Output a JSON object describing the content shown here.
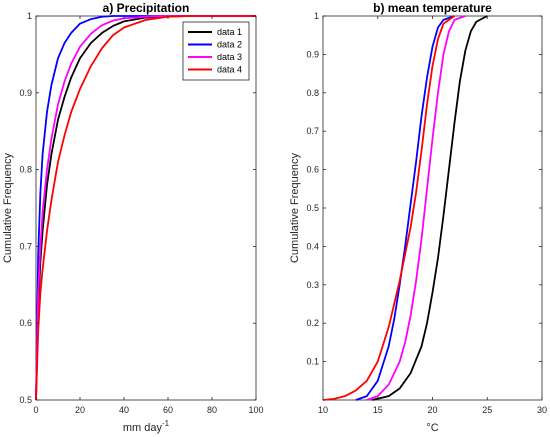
{
  "chart_data": [
    {
      "type": "line",
      "title": "a) Precipitation",
      "xlabel": "mm day",
      "xlabel_superscript": "-1",
      "ylabel": "Cumulative Frequency",
      "xlim": [
        0,
        100
      ],
      "ylim": [
        0.5,
        1
      ],
      "xticks": [
        0,
        20,
        40,
        60,
        80,
        100
      ],
      "yticks": [
        0.5,
        0.6,
        0.7,
        0.8,
        0.9,
        1
      ],
      "ytick_labels": [
        "0.5",
        "0.6",
        "0.7",
        "0.8",
        "0.9",
        "1"
      ],
      "legend": "top-right",
      "series": [
        {
          "name": "data 1",
          "color": "#000000",
          "x": [
            0,
            1,
            2,
            3,
            5,
            7,
            10,
            13,
            16,
            20,
            25,
            30,
            35,
            40,
            50,
            60,
            70,
            80,
            100
          ],
          "y": [
            0.5,
            0.62,
            0.68,
            0.72,
            0.78,
            0.82,
            0.865,
            0.895,
            0.92,
            0.945,
            0.965,
            0.978,
            0.987,
            0.993,
            0.998,
            0.9995,
            1.0,
            1.0,
            1.0
          ]
        },
        {
          "name": "data 2",
          "color": "#0000ff",
          "x": [
            0,
            1,
            2,
            3,
            5,
            7,
            10,
            13,
            16,
            20,
            25,
            30,
            35,
            40,
            50,
            60,
            70,
            80,
            100
          ],
          "y": [
            0.5,
            0.69,
            0.77,
            0.82,
            0.875,
            0.91,
            0.945,
            0.965,
            0.978,
            0.99,
            0.996,
            0.999,
            1.0,
            1.0,
            1.0,
            1.0,
            1.0,
            1.0,
            1.0
          ]
        },
        {
          "name": "data 3",
          "color": "#ff00ff",
          "x": [
            0,
            1,
            2,
            3,
            5,
            7,
            10,
            13,
            16,
            20,
            25,
            30,
            35,
            40,
            50,
            60,
            70,
            80,
            100
          ],
          "y": [
            0.5,
            0.64,
            0.7,
            0.745,
            0.8,
            0.84,
            0.885,
            0.915,
            0.938,
            0.96,
            0.977,
            0.988,
            0.994,
            0.997,
            0.999,
            1.0,
            1.0,
            1.0,
            1.0
          ]
        },
        {
          "name": "data 4",
          "color": "#ff0000",
          "x": [
            0,
            1,
            2,
            3,
            5,
            7,
            10,
            13,
            16,
            20,
            25,
            30,
            35,
            40,
            50,
            60,
            70,
            80,
            100
          ],
          "y": [
            0.5,
            0.59,
            0.64,
            0.67,
            0.72,
            0.76,
            0.81,
            0.845,
            0.875,
            0.905,
            0.935,
            0.958,
            0.975,
            0.985,
            0.995,
            0.999,
            1.0,
            1.0,
            1.0
          ]
        }
      ]
    },
    {
      "type": "line",
      "title": "b) mean temperature",
      "xlabel": "°C",
      "ylabel": "Cumulative Frequency",
      "xlim": [
        10,
        30
      ],
      "ylim": [
        0,
        1
      ],
      "xticks": [
        10,
        15,
        20,
        25,
        30
      ],
      "yticks": [
        0.1,
        0.2,
        0.3,
        0.4,
        0.5,
        0.6,
        0.7,
        0.8,
        0.9,
        1
      ],
      "ytick_labels": [
        "0.1",
        "0.2",
        "0.3",
        "0.4",
        "0.5",
        "0.6",
        "0.7",
        "0.8",
        "0.9",
        "1"
      ],
      "series": [
        {
          "name": "data 1",
          "color": "#000000",
          "x": [
            14.5,
            16,
            17,
            18,
            19,
            19.5,
            20,
            20.5,
            21,
            21.5,
            22,
            22.5,
            23,
            23.5,
            24,
            25
          ],
          "y": [
            0,
            0.01,
            0.03,
            0.07,
            0.14,
            0.2,
            0.28,
            0.37,
            0.48,
            0.6,
            0.72,
            0.83,
            0.91,
            0.96,
            0.985,
            1.0
          ]
        },
        {
          "name": "data 2",
          "color": "#0000ff",
          "x": [
            13,
            14,
            15,
            16,
            16.5,
            17,
            17.5,
            18,
            18.5,
            19,
            19.5,
            20,
            20.5,
            21,
            22
          ],
          "y": [
            0,
            0.01,
            0.05,
            0.14,
            0.21,
            0.3,
            0.4,
            0.51,
            0.62,
            0.74,
            0.84,
            0.92,
            0.97,
            0.99,
            1.0
          ]
        },
        {
          "name": "data 3",
          "color": "#ff00ff",
          "x": [
            14,
            15,
            16,
            17,
            17.5,
            18,
            18.5,
            19,
            19.5,
            20,
            20.5,
            21,
            21.5,
            22,
            23
          ],
          "y": [
            0,
            0.01,
            0.04,
            0.1,
            0.15,
            0.22,
            0.31,
            0.42,
            0.55,
            0.68,
            0.8,
            0.9,
            0.96,
            0.99,
            1.0
          ]
        },
        {
          "name": "data 4",
          "color": "#ff0000",
          "x": [
            10,
            11,
            12,
            13,
            14,
            15,
            16,
            17,
            18,
            18.5,
            19,
            19.5,
            20,
            20.5,
            21,
            22
          ],
          "y": [
            0,
            0.003,
            0.01,
            0.025,
            0.05,
            0.1,
            0.19,
            0.31,
            0.45,
            0.54,
            0.65,
            0.77,
            0.87,
            0.94,
            0.98,
            1.0
          ]
        }
      ]
    }
  ]
}
